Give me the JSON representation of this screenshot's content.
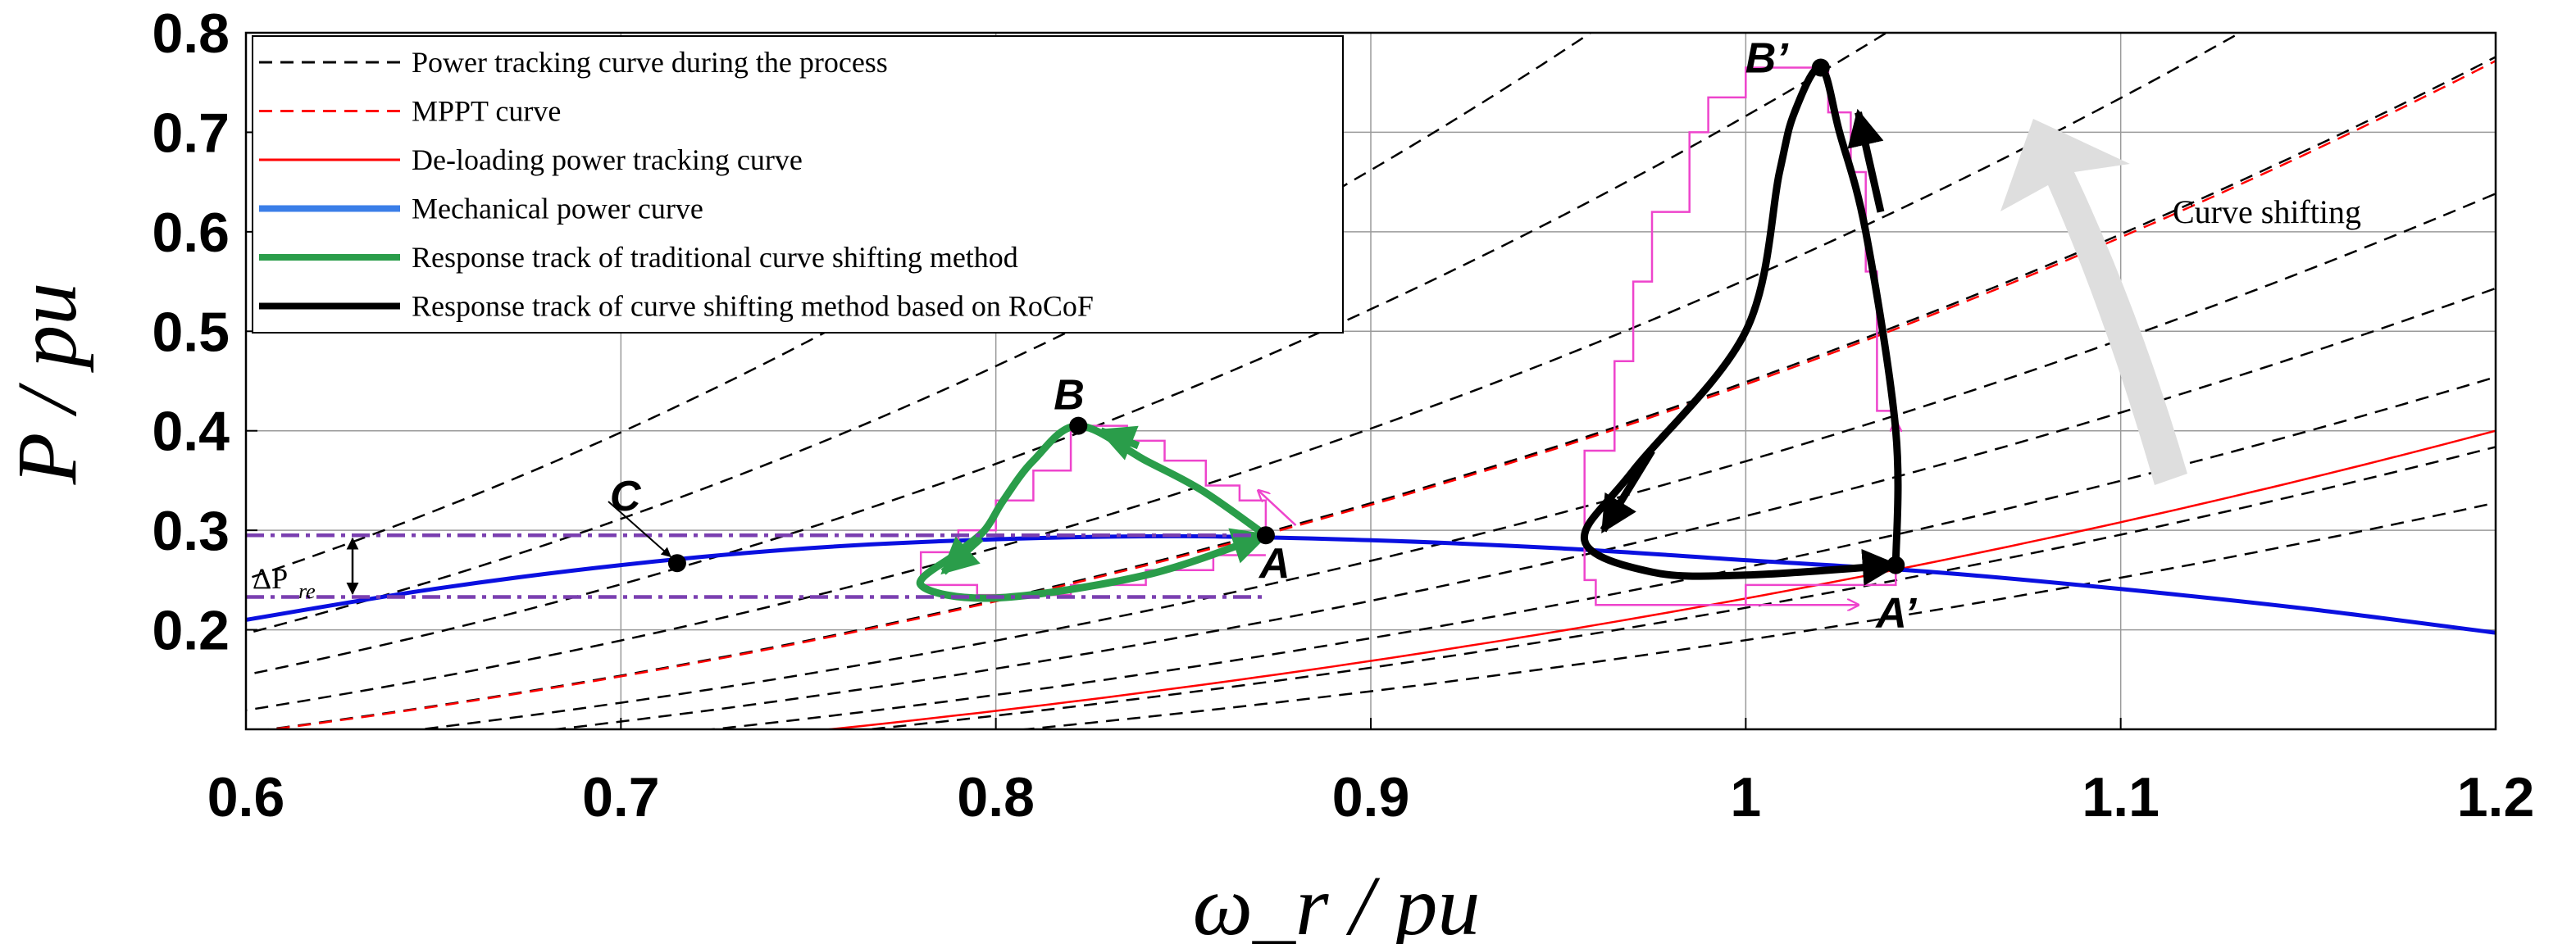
{
  "chart_data": {
    "type": "line",
    "xlabel": "ω_r / pu",
    "ylabel": "P / pu",
    "xlim": [
      0.6,
      1.2
    ],
    "ylim": [
      0.1,
      0.8
    ],
    "x_ticks": [
      "0.6",
      "0.7",
      "0.8",
      "0.9",
      "1",
      "1.1",
      "1.2"
    ],
    "y_ticks": [
      "0.2",
      "0.3",
      "0.4",
      "0.5",
      "0.6",
      "0.7",
      "0.8"
    ],
    "grid": true,
    "legend_position": "top-left",
    "legend": [
      {
        "label": "Power tracking curve during the process",
        "color": "#000000",
        "style": "dashed"
      },
      {
        "label": "MPPT curve",
        "color": "#ff0000",
        "style": "dashed"
      },
      {
        "label": "De-loading power tracking curve",
        "color": "#ff0000",
        "style": "solid"
      },
      {
        "label": "Mechanical power curve",
        "color": "#3a7ee8",
        "style": "solid"
      },
      {
        "label": "Response track of traditional curve shifting method",
        "color": "#2a9d4a",
        "style": "solid"
      },
      {
        "label": "Response track of curve shifting method based on RoCoF",
        "color": "#000000",
        "style": "solid"
      }
    ],
    "series": [
      {
        "name": "Power tracking curve during the process",
        "type": "family",
        "form": "P = k * ω_r^3",
        "k_values": [
          0.1896,
          0.2221,
          0.2628,
          0.3143,
          0.3694,
          0.4489,
          0.5518,
          0.7163,
          0.9081,
          1.1617
        ]
      },
      {
        "name": "MPPT curve",
        "form": "P = k * ω_r^3",
        "k": 0.4466
      },
      {
        "name": "De-loading power tracking curve",
        "form": "P = k * ω_r^3",
        "k": 0.2315
      },
      {
        "name": "Mechanical power curve",
        "x": [
          0.6,
          0.65,
          0.7,
          0.75,
          0.8,
          0.85,
          0.9,
          0.95,
          1.0,
          1.05,
          1.1,
          1.15,
          1.2
        ],
        "y": [
          0.21,
          0.241,
          0.265,
          0.282,
          0.291,
          0.294,
          0.29,
          0.282,
          0.27,
          0.258,
          0.241,
          0.221,
          0.197
        ]
      },
      {
        "name": "Response track of traditional curve shifting method",
        "x": [
          0.872,
          0.855,
          0.84,
          0.822,
          0.81,
          0.802,
          0.797,
          0.79,
          0.78,
          0.8,
          0.84,
          0.872
        ],
        "y": [
          0.295,
          0.34,
          0.37,
          0.405,
          0.37,
          0.33,
          0.3,
          0.278,
          0.245,
          0.232,
          0.255,
          0.295
        ]
      },
      {
        "name": "Response track of curve shifting method based on RoCoF",
        "x": [
          1.04,
          1.04,
          1.032,
          1.025,
          1.02,
          1.013,
          1.009,
          1.0,
          0.97,
          0.957,
          0.975,
          1.0,
          1.04
        ],
        "y": [
          0.265,
          0.4,
          0.6,
          0.7,
          0.765,
          0.72,
          0.66,
          0.5,
          0.36,
          0.29,
          0.258,
          0.255,
          0.265
        ]
      }
    ],
    "points": [
      {
        "label": "A",
        "x": 0.872,
        "y": 0.295
      },
      {
        "label": "B",
        "x": 0.822,
        "y": 0.405
      },
      {
        "label": "C",
        "x": 0.715,
        "y": 0.267
      },
      {
        "label": "A’",
        "x": 1.04,
        "y": 0.265
      },
      {
        "label": "B’",
        "x": 1.02,
        "y": 0.765
      }
    ],
    "annotations": {
      "curve_shifting": "Curve shifting",
      "delta_p": "ΔP",
      "delta_p_sub": "re"
    },
    "delta_p_levels": [
      0.295,
      0.233
    ]
  },
  "colors": {
    "tracking": "#000000",
    "mppt": "#ff0000",
    "deload": "#ff0000",
    "mechanical": "#0a10e0",
    "mechanical_legend": "#3a7ee8",
    "green_track": "#2a9d4a",
    "black_track": "#000000",
    "staircase": "#ee44cc",
    "delta_line": "#7a3fb0",
    "grid": "#9a9a9a"
  }
}
